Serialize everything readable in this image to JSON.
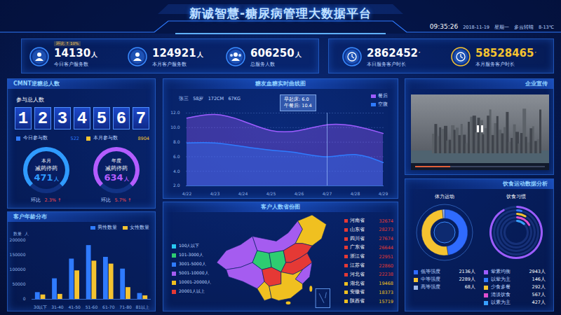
{
  "header": {
    "title": "新诚智慧-糖尿病管理大数据平台",
    "time": "09:35:26",
    "date": "2018-11-19",
    "weekday": "星期一",
    "weather": "多云转晴",
    "temperature": "8-13℃"
  },
  "kpis": {
    "left": [
      {
        "value": "14130人",
        "label": "今日客户服务数",
        "badge": "环比 ↑ 10%"
      },
      {
        "value": "124921人",
        "label": "本月客户服务数"
      },
      {
        "value": "606250人",
        "label": "总服务人数"
      }
    ],
    "right": [
      {
        "value": "2862452′",
        "label": "本日服务客户时长"
      },
      {
        "value": "58528465′",
        "label": "本月服务客户时长"
      }
    ]
  },
  "participants": {
    "title": "CMNT逆糖总人数",
    "label": "参与总人数",
    "digits": "1234567",
    "counts": [
      {
        "label": "今日参与数",
        "value": "522",
        "color": "#2f7bff"
      },
      {
        "label": "本月参与数",
        "value": "8904",
        "color": "#f5c330"
      }
    ],
    "gauges": [
      {
        "period": "本月",
        "label": "减药停药",
        "value": "471人",
        "change_label": "环比",
        "change": "2.3% ↑"
      },
      {
        "period": "年度",
        "label": "减药停药",
        "value": "634人",
        "change_label": "环比",
        "change": "5.7% ↑"
      }
    ]
  },
  "video": {
    "title": "企业宣传"
  },
  "map": {
    "title": "客户人数省份图",
    "legend": [
      {
        "label": "100人以下",
        "color": "#28c8f0"
      },
      {
        "label": "101-3000人",
        "color": "#2ecc71"
      },
      {
        "label": "3001-5000人",
        "color": "#2f7bff"
      },
      {
        "label": "5001-10000人",
        "color": "#a55cf0"
      },
      {
        "label": "10001-20000人",
        "color": "#f0c020"
      },
      {
        "label": "20001人以上",
        "color": "#e53935"
      }
    ],
    "provinces": [
      {
        "name": "河南省",
        "value": "32674",
        "color": "#e53935"
      },
      {
        "name": "山东省",
        "value": "28273",
        "color": "#e53935"
      },
      {
        "name": "四川省",
        "value": "27674",
        "color": "#e53935"
      },
      {
        "name": "广东省",
        "value": "26644",
        "color": "#e53935"
      },
      {
        "name": "浙江省",
        "value": "22951",
        "color": "#e53935"
      },
      {
        "name": "江苏省",
        "value": "22860",
        "color": "#e53935"
      },
      {
        "name": "河北省",
        "value": "22238",
        "color": "#e53935"
      },
      {
        "name": "湖北省",
        "value": "19468",
        "color": "#f0c020"
      },
      {
        "name": "安徽省",
        "value": "18373",
        "color": "#f0c020"
      },
      {
        "name": "陕西省",
        "value": "15719",
        "color": "#f0c020"
      }
    ]
  },
  "analysis": {
    "title": "饮食运动数据分析"
  },
  "chart_data": [
    {
      "type": "line",
      "title": "糖友血糖实时曲线图",
      "subtitle": "张三   58岁   172CM   67KG",
      "x": [
        "4/22",
        "4/23",
        "4/24",
        "4/25",
        "4/26",
        "4/27",
        "4/28",
        "4/29"
      ],
      "series": [
        {
          "name": "餐后",
          "color": "#9d5cff",
          "values": [
            11.3,
            11.8,
            10.9,
            9.6,
            9.6,
            10.4,
            10.2,
            9.2
          ]
        },
        {
          "name": "空腹",
          "color": "#2f7bff",
          "values": [
            7.9,
            7.9,
            7.4,
            6.9,
            6.5,
            6.0,
            6.3,
            5.2
          ]
        }
      ],
      "ylim": [
        2,
        12
      ],
      "yticks": [
        {
          "value": 2,
          "label": "2.0"
        },
        {
          "value": 4,
          "label": "4.0"
        },
        {
          "value": 6,
          "label": "6.0"
        },
        {
          "value": 8,
          "label": "8.0"
        },
        {
          "value": 10,
          "label": "10.0"
        },
        {
          "value": 12,
          "label": "12.0"
        }
      ],
      "grid": true,
      "legend": "top-right",
      "annotations": [
        {
          "x": "4/27",
          "lines": [
            "早起床: 6.0",
            "午餐后: 10.4"
          ]
        }
      ]
    },
    {
      "type": "bar",
      "title": "客户年龄分布",
      "ylabel": "数量  人",
      "categories": [
        "30以下",
        "31-40",
        "41-50",
        "51-60",
        "61-70",
        "71-80",
        "81以上"
      ],
      "series": [
        {
          "name": "男性数量",
          "color": "#2f7bff",
          "values": [
            23000,
            70000,
            137000,
            183000,
            143000,
            103000,
            20000
          ]
        },
        {
          "name": "女性数量",
          "color": "#f5c330",
          "values": [
            15000,
            17000,
            97000,
            130000,
            120000,
            40000,
            12000
          ]
        }
      ],
      "ylim": [
        0,
        200000
      ],
      "yticks": [
        0,
        50000,
        100000,
        150000,
        200000
      ],
      "grid": false,
      "legend": "top-right"
    },
    {
      "type": "pie",
      "title": "体力运动",
      "categories": [
        "低等强度",
        "中等强度",
        "高等强度"
      ],
      "values": [
        2136,
        2289,
        68
      ],
      "value_labels": [
        "2136人",
        "2289人",
        "68人"
      ],
      "colors": [
        "#2f6bff",
        "#f5c330",
        "#9fb8e8"
      ]
    },
    {
      "type": "radial_bar",
      "title": "饮食习惯",
      "categories": [
        "荤素均衡",
        "以荤为主",
        "少食多餐",
        "清淡饮食",
        "以素为主"
      ],
      "values": [
        2943,
        146,
        292,
        567,
        427
      ],
      "value_labels": [
        "2943人",
        "146人",
        "292人",
        "567人",
        "427人"
      ],
      "colors": [
        "#9d5cff",
        "#2f7bff",
        "#f5c330",
        "#e04fd0",
        "#38a0ff"
      ]
    }
  ]
}
